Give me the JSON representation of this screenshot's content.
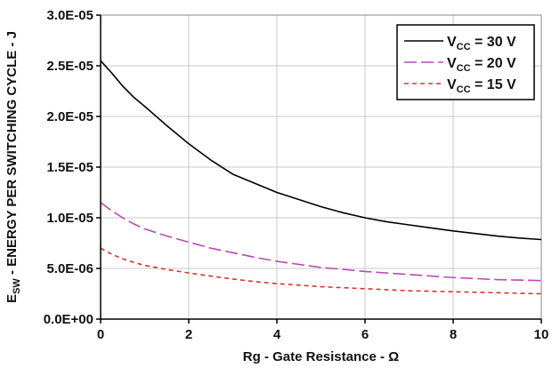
{
  "chart_data": {
    "type": "line",
    "title": "",
    "xlabel": "Rg - Gate Resistance - Ω",
    "ylabel": {
      "main": "E",
      "sub": "SW",
      "rest": " - ENERGY PER SWITCHING CYCLE - J"
    },
    "xlim": [
      0,
      10
    ],
    "ylim": [
      0,
      3e-05
    ],
    "x_ticks": [
      0,
      2,
      4,
      6,
      8,
      10
    ],
    "x_tick_labels": [
      "0",
      "2",
      "4",
      "6",
      "8",
      "10"
    ],
    "y_ticks": [
      0,
      5e-06,
      1e-05,
      1.5e-05,
      2e-05,
      2.5e-05,
      3e-05
    ],
    "y_tick_labels": [
      "0.0E+00",
      "5.0E-06",
      "1.0E-05",
      "1.5E-05",
      "2.0E-05",
      "2.5E-05",
      "3.0E-05"
    ],
    "grid": true,
    "legend_position": "top-right",
    "series": [
      {
        "name": "V_CC = 30 V",
        "label_main": "V",
        "label_sub": "CC",
        "label_rest": " = 30 V",
        "color": "#000000",
        "style": "solid",
        "x": [
          0,
          0.25,
          0.5,
          0.75,
          1,
          1.5,
          2,
          2.5,
          3,
          3.5,
          4,
          4.5,
          5,
          5.5,
          6,
          6.5,
          7,
          7.5,
          8,
          8.5,
          9,
          9.5,
          10
        ],
        "y": [
          2.55e-05,
          2.43e-05,
          2.3e-05,
          2.19e-05,
          2.1e-05,
          1.91e-05,
          1.73e-05,
          1.57e-05,
          1.43e-05,
          1.34e-05,
          1.25e-05,
          1.18e-05,
          1.11e-05,
          1.05e-05,
          1e-05,
          9.6e-06,
          9.3e-06,
          9e-06,
          8.7e-06,
          8.45e-06,
          8.2e-06,
          8e-06,
          7.85e-06
        ]
      },
      {
        "name": "V_CC = 20 V",
        "label_main": "V",
        "label_sub": "CC",
        "label_rest": " = 20 V",
        "color": "#b84ab8",
        "style": "longdash",
        "x": [
          0,
          0.25,
          0.5,
          0.75,
          1,
          1.5,
          2,
          2.5,
          3,
          3.5,
          4,
          4.5,
          5,
          5.5,
          6,
          6.5,
          7,
          7.5,
          8,
          8.5,
          9,
          9.5,
          10
        ],
        "y": [
          1.15e-05,
          1.07e-05,
          1e-05,
          9.4e-06,
          8.9e-06,
          8.2e-06,
          7.6e-06,
          7e-06,
          6.55e-06,
          6.1e-06,
          5.7e-06,
          5.4e-06,
          5.1e-06,
          4.9e-06,
          4.7e-06,
          4.55e-06,
          4.4e-06,
          4.25e-06,
          4.1e-06,
          4e-06,
          3.9e-06,
          3.85e-06,
          3.8e-06
        ]
      },
      {
        "name": "V_CC = 15 V",
        "label_main": "V",
        "label_sub": "CC",
        "label_rest": " = 15 V",
        "color": "#e03030",
        "style": "shortdash",
        "x": [
          0,
          0.25,
          0.5,
          0.75,
          1,
          1.5,
          2,
          2.5,
          3,
          3.5,
          4,
          4.5,
          5,
          5.5,
          6,
          6.5,
          7,
          7.5,
          8,
          8.5,
          9,
          9.5,
          10
        ],
        "y": [
          7e-06,
          6.4e-06,
          5.95e-06,
          5.6e-06,
          5.3e-06,
          4.9e-06,
          4.55e-06,
          4.25e-06,
          3.95e-06,
          3.7e-06,
          3.5e-06,
          3.35e-06,
          3.2e-06,
          3.1e-06,
          3e-06,
          2.9e-06,
          2.8e-06,
          2.75e-06,
          2.7e-06,
          2.65e-06,
          2.6e-06,
          2.55e-06,
          2.5e-06
        ]
      }
    ]
  }
}
